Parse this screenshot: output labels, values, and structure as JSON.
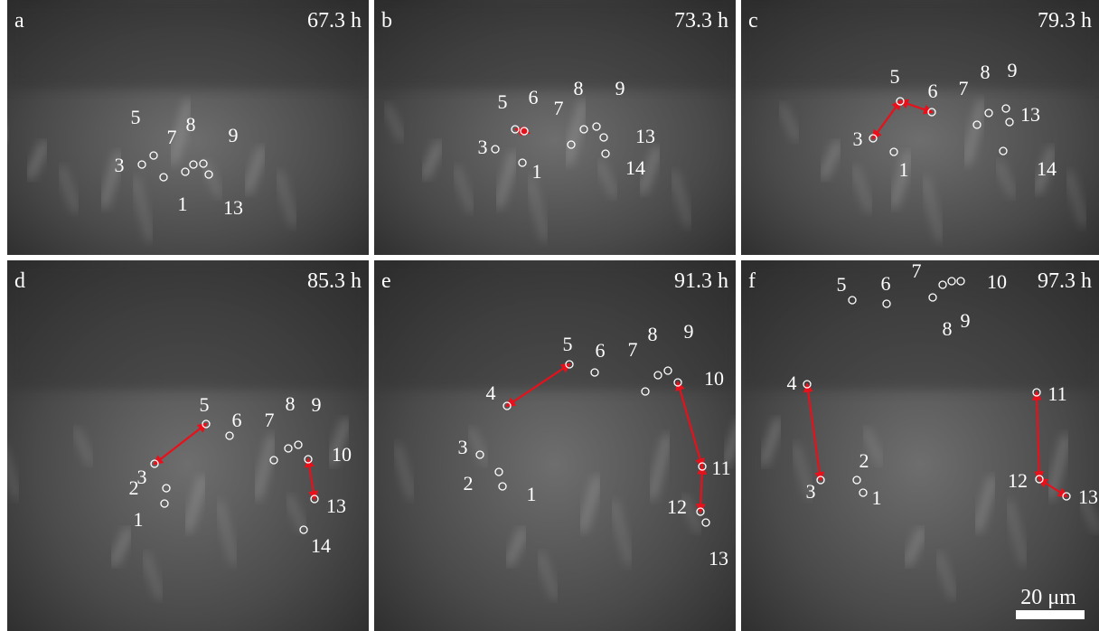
{
  "panels": [
    {
      "label": "a",
      "time": "67.3 h",
      "points": [
        "3",
        "5",
        "7",
        "8",
        "1",
        "9",
        "13"
      ]
    },
    {
      "label": "b",
      "time": "73.3 h",
      "points": [
        "5",
        "6",
        "3",
        "7",
        "8",
        "9",
        "13",
        "14",
        "1"
      ]
    },
    {
      "label": "c",
      "time": "79.3 h",
      "points": [
        "5",
        "6",
        "3",
        "1",
        "7",
        "8",
        "9",
        "13",
        "14"
      ]
    },
    {
      "label": "d",
      "time": "85.3 h",
      "points": [
        "5",
        "6",
        "3",
        "2",
        "1",
        "7",
        "8",
        "9",
        "10",
        "13",
        "14"
      ]
    },
    {
      "label": "e",
      "time": "91.3 h",
      "points": [
        "4",
        "5",
        "6",
        "3",
        "2",
        "1",
        "7",
        "8",
        "9",
        "10",
        "11",
        "12",
        "13"
      ]
    },
    {
      "label": "f",
      "time": "97.3 h",
      "points": [
        "5",
        "6",
        "7",
        "8",
        "9",
        "10",
        "4",
        "3",
        "2",
        "1",
        "11",
        "12",
        "13"
      ]
    }
  ],
  "scale_bar": "20 μm"
}
